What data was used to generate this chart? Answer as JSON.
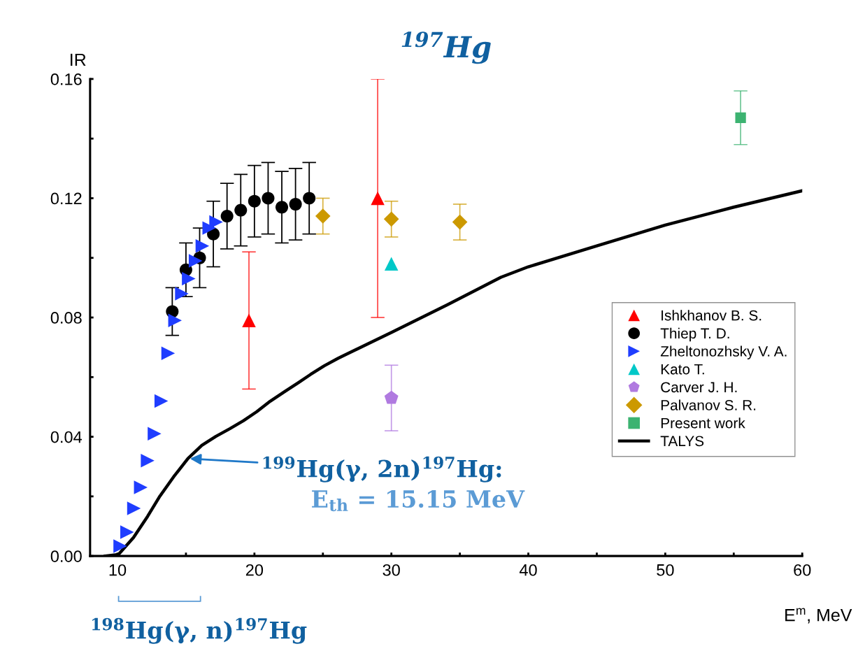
{
  "chart_data": {
    "type": "scatter",
    "title": "$^{197}$Hg",
    "xlabel": "E$^{m}$, MeV",
    "ylabel": "IR",
    "xlim": [
      8,
      60
    ],
    "ylim": [
      0,
      0.16
    ],
    "xticks": [
      10,
      {
        "value": 15,
        "label": null
      },
      20,
      {
        "value": 25,
        "label": null
      },
      30,
      {
        "value": 35,
        "label": null
      },
      40,
      {
        "value": 45,
        "label": null
      },
      50,
      {
        "value": 55,
        "label": null
      },
      60
    ],
    "yticks": [
      {
        "value": 0,
        "label": "0.00"
      },
      {
        "value": 0.02,
        "label": null
      },
      {
        "value": 0.04,
        "label": "0.04"
      },
      {
        "value": 0.06,
        "label": null
      },
      {
        "value": 0.08,
        "label": "0.08"
      },
      {
        "value": 0.1,
        "label": null
      },
      {
        "value": 0.12,
        "label": "0.12"
      },
      {
        "value": 0.14,
        "label": null
      },
      {
        "value": 0.16,
        "label": "0.16"
      }
    ],
    "grid": false,
    "legend": "right",
    "series": [
      {
        "name": "Ishkhanov B. S.",
        "color": "#ff0000",
        "marker": "triangle",
        "x": [
          19.6,
          29
        ],
        "values": [
          0.079,
          0.12
        ],
        "errors": [
          [
            0.056,
            0.102
          ],
          [
            0.08,
            0.16
          ]
        ]
      },
      {
        "name": "Thiep T. D.",
        "color": "#000000",
        "marker": "circle",
        "x": [
          14,
          15,
          16,
          17,
          18,
          19,
          20,
          21,
          22,
          23,
          24
        ],
        "values": [
          0.082,
          0.096,
          0.1,
          0.108,
          0.114,
          0.116,
          0.119,
          0.12,
          0.117,
          0.118,
          0.12
        ],
        "errors": [
          [
            0.074,
            0.09
          ],
          [
            0.087,
            0.105
          ],
          [
            0.09,
            0.11
          ],
          [
            0.097,
            0.119
          ],
          [
            0.103,
            0.125
          ],
          [
            0.104,
            0.128
          ],
          [
            0.107,
            0.131
          ],
          [
            0.108,
            0.132
          ],
          [
            0.105,
            0.129
          ],
          [
            0.106,
            0.13
          ],
          [
            0.108,
            0.132
          ]
        ]
      },
      {
        "name": "Zheltonozhsky V. A.",
        "color": "#1f3dff",
        "marker": "triangle_right",
        "x": [
          10.2,
          10.7,
          11.2,
          11.7,
          12.2,
          12.7,
          13.2,
          13.7,
          14.2,
          14.7,
          15.2,
          15.7,
          16.2,
          16.7,
          17.2
        ],
        "values": [
          0.0033,
          0.008,
          0.016,
          0.023,
          0.032,
          0.041,
          0.052,
          0.068,
          0.079,
          0.088,
          0.093,
          0.099,
          0.104,
          0.11,
          0.112
        ]
      },
      {
        "name": "Kato T.",
        "color": "#00c8c8",
        "marker": "triangle",
        "x": [
          30
        ],
        "values": [
          0.098
        ]
      },
      {
        "name": "Carver J. H.",
        "color": "#b07ae0",
        "x": [
          30
        ],
        "values": [
          0.053
        ],
        "errors": [
          [
            0.042,
            0.064
          ]
        ]
      },
      {
        "name": "Palvanov S. R.",
        "color": "#cc9900",
        "marker": "diamond",
        "x": [
          25,
          30,
          35
        ],
        "values": [
          0.114,
          0.113,
          0.112
        ],
        "errors": [
          [
            0.108,
            0.12
          ],
          [
            0.107,
            0.119
          ],
          [
            0.106,
            0.118
          ]
        ]
      },
      {
        "name": "Present work",
        "color": "#3cb371",
        "marker": "square",
        "x": [
          55.5
        ],
        "values": [
          0.147
        ],
        "errors": [
          [
            0.138,
            0.156
          ]
        ]
      },
      {
        "name": "TALYS",
        "type": "line",
        "color": "#000000",
        "marker": "none",
        "line_style": "solid",
        "x": [
          9.1,
          10.07,
          11.17,
          12.2,
          13.1,
          14.17,
          15.15,
          16.16,
          17.18,
          18.2,
          19.2,
          20.17,
          21.15,
          22.2,
          23.2,
          24.1,
          25.1,
          26.1,
          30.1,
          34.1,
          38,
          40,
          45,
          50,
          55,
          60
        ],
        "values": [
          0,
          0.0005,
          0.0062,
          0.0133,
          0.0201,
          0.027,
          0.0327,
          0.0371,
          0.0401,
          0.0427,
          0.0454,
          0.0484,
          0.0519,
          0.0551,
          0.0581,
          0.0609,
          0.0638,
          0.0663,
          0.0752,
          0.0843,
          0.0935,
          0.097,
          0.104,
          0.111,
          0.117,
          0.1225
        ]
      }
    ],
    "annotations": [
      {
        "text": "$^{199}$Hg(γ, 2n)$^{197}$Hg:",
        "x": 15.15,
        "y": 0.0327
      },
      "E$_{th}$ = 15.15 MeV",
      "$^{198}$Hg(γ, n)$^{197}$Hg"
    ]
  }
}
